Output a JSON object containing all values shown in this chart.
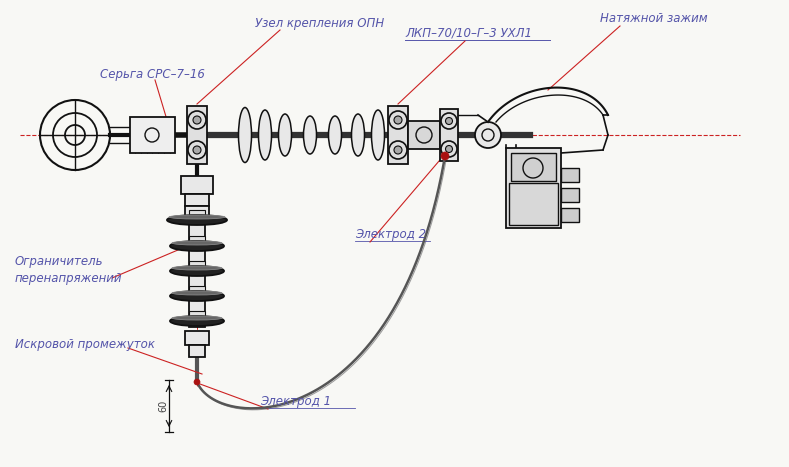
{
  "bg_color": "#f8f8f5",
  "line_color": "#111111",
  "red_line_color": "#cc2222",
  "label_color": "#5555aa",
  "dim_color": "#444444",
  "labels": {
    "sergha": "Серьга СРС–7–16",
    "uzel": "Узел крепления ОПН",
    "lkp": "ЛКП–70/10–Г–3 УХЛ1",
    "natyazh": "Натяжной зажим",
    "ogranich": "Ограничитель\nперенапряжений",
    "iskrovoy": "Искровой промежуток",
    "elektrod1": "Электрод 1",
    "elektrod2": "Электрод 2",
    "dim60": "60"
  },
  "figsize": [
    7.89,
    4.67
  ],
  "dpi": 100
}
